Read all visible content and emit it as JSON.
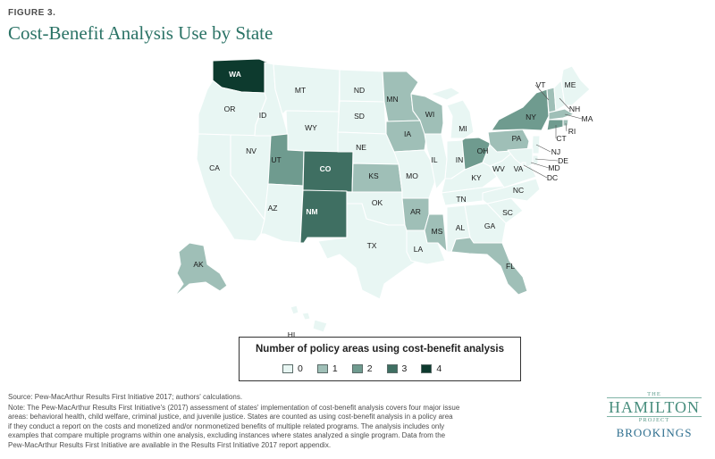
{
  "header": {
    "figure_label": "FIGURE 3.",
    "title": "Cost-Benefit Analysis Use by State"
  },
  "legend": {
    "title": "Number of policy areas using cost-benefit analysis",
    "items": [
      {
        "label": "0",
        "color": "#e8f6f3"
      },
      {
        "label": "1",
        "color": "#9fbfb7"
      },
      {
        "label": "2",
        "color": "#6f9b8f"
      },
      {
        "label": "3",
        "color": "#3f6f62"
      },
      {
        "label": "4",
        "color": "#0d3a2e"
      }
    ]
  },
  "states": {
    "WA": 4,
    "OR": 0,
    "CA": 0,
    "NV": 0,
    "ID": 0,
    "MT": 0,
    "WY": 0,
    "UT": 2,
    "AZ": 0,
    "CO": 3,
    "NM": 3,
    "ND": 0,
    "SD": 0,
    "NE": 0,
    "KS": 1,
    "OK": 0,
    "TX": 0,
    "MN": 1,
    "IA": 1,
    "MO": 0,
    "AR": 1,
    "LA": 0,
    "WI": 1,
    "IL": 0,
    "MS": 1,
    "MI": 0,
    "IN": 0,
    "KY": 0,
    "TN": 0,
    "AL": 0,
    "OH": 2,
    "GA": 0,
    "FL": 1,
    "SC": 0,
    "NC": 0,
    "VA": 0,
    "WV": 0,
    "PA": 1,
    "NY": 2,
    "VT": 1,
    "NH": 0,
    "ME": 0,
    "MA": 1,
    "RI": 1,
    "CT": 2,
    "NJ": 0,
    "DE": 0,
    "MD": 0,
    "DC": 0,
    "AK": 1,
    "HI": 0
  },
  "footer": {
    "source": "Source: Pew-MacArthur Results First Initiative 2017; authors' calculations.",
    "note_lines": [
      "Note: The Pew-MacArthur Results First Initiative's (2017) assessment of states' implementation of cost-benefit analysis covers four major issue",
      "areas: behavioral health, child welfare, criminal justice, and juvenile justice. States are counted as using cost-benefit analysis in a policy area",
      "if they conduct a report on the costs and monetized and/or nonmonetized benefits of multiple related programs. The analysis includes only",
      "examples that compare multiple programs within one analysis, excluding instances where states analyzed a single program. Data from the",
      "Pew-MacArthur Results First Initiative are available in the Results First Initiative 2017 report appendix."
    ]
  },
  "logo": {
    "the": "THE",
    "hamilton": "HAMILTON",
    "project": "PROJECT",
    "brookings": "BROOKINGS"
  }
}
